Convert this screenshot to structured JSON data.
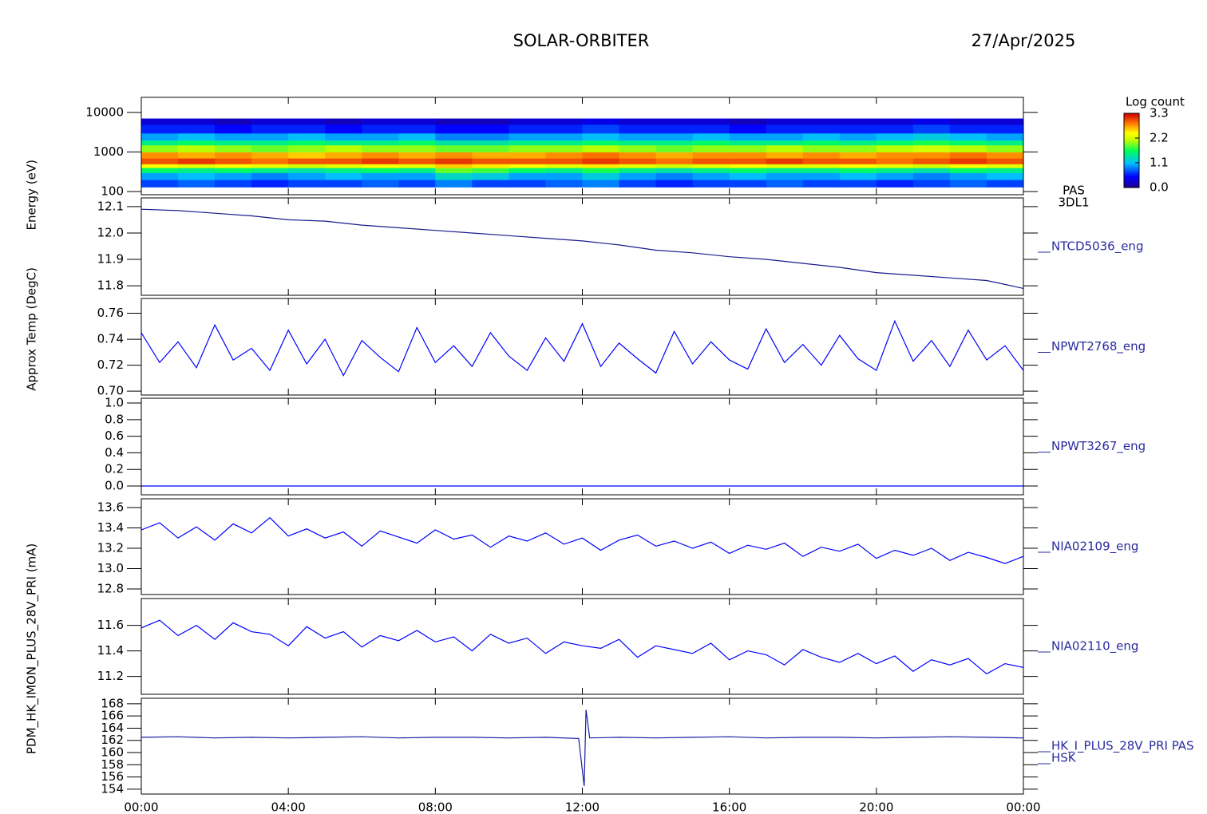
{
  "title": "SOLAR-ORBITER",
  "date": "27/Apr/2025",
  "xlim": [
    0,
    24
  ],
  "xticks": [
    {
      "value": 0,
      "label": "00:00"
    },
    {
      "value": 4,
      "label": "04:00"
    },
    {
      "value": 8,
      "label": "08:00"
    },
    {
      "value": 12,
      "label": "12:00"
    },
    {
      "value": 16,
      "label": "16:00"
    },
    {
      "value": 20,
      "label": "20:00"
    },
    {
      "value": 24,
      "label": "00:00"
    }
  ],
  "chart_data": [
    {
      "type": "heatmap",
      "ylabel": "Energy (eV)",
      "label": [
        "PAS",
        "3DL1"
      ],
      "log": true,
      "ylim": [
        83,
        24000
      ],
      "yticks": [
        100,
        1000,
        10000
      ],
      "colormap": "rainbow",
      "zlim": [
        0,
        3.3
      ],
      "colorbar": {
        "title": "Log count",
        "ticks": [
          {
            "value": 0,
            "label": "0.0"
          },
          1.1,
          2.2,
          3.3
        ]
      },
      "x_edges": [
        0,
        1,
        2,
        3,
        4,
        5,
        6,
        7,
        8,
        9,
        10,
        11,
        12,
        13,
        14,
        15,
        16,
        17,
        18,
        19,
        20,
        21,
        22,
        23,
        24
      ],
      "y_edges": [
        130,
        200,
        300,
        400,
        500,
        700,
        1000,
        1500,
        2000,
        3000,
        5000,
        7000
      ],
      "z": [
        [
          0.7,
          0.8,
          0.7,
          0.6,
          0.7,
          0.7,
          0.8,
          0.7,
          0.9,
          0.7,
          0.7,
          0.8,
          0.9,
          0.7,
          0.6,
          0.7,
          0.7,
          0.8,
          0.7,
          0.7,
          0.6,
          0.7,
          0.8,
          0.7
        ],
        [
          1.0,
          1.1,
          1.0,
          0.9,
          1.0,
          1.1,
          1.0,
          1.0,
          1.3,
          1.2,
          1.0,
          1.0,
          1.2,
          1.0,
          0.9,
          1.0,
          1.1,
          1.0,
          1.0,
          1.1,
          1.0,
          0.9,
          1.0,
          1.1
        ],
        [
          1.6,
          1.5,
          1.6,
          1.5,
          1.4,
          1.5,
          1.6,
          1.5,
          1.9,
          1.8,
          1.6,
          1.5,
          1.7,
          1.5,
          1.4,
          1.5,
          1.6,
          1.5,
          1.5,
          1.6,
          1.5,
          1.4,
          1.6,
          1.5
        ],
        [
          2.4,
          2.3,
          2.4,
          2.3,
          2.2,
          2.3,
          2.4,
          2.3,
          2.6,
          2.5,
          2.4,
          2.3,
          2.5,
          2.3,
          2.2,
          2.3,
          2.4,
          2.3,
          2.3,
          2.4,
          2.3,
          2.2,
          2.4,
          2.3
        ],
        [
          3.0,
          3.1,
          3.0,
          2.9,
          3.0,
          3.0,
          3.1,
          3.0,
          3.1,
          3.0,
          3.0,
          3.0,
          3.1,
          3.0,
          2.9,
          3.0,
          3.0,
          3.1,
          3.0,
          3.0,
          2.9,
          3.0,
          3.1,
          3.0
        ],
        [
          2.8,
          2.7,
          2.8,
          2.7,
          2.6,
          2.7,
          2.8,
          2.7,
          2.8,
          2.7,
          2.7,
          2.8,
          2.9,
          2.8,
          2.7,
          2.8,
          2.8,
          2.7,
          2.8,
          2.7,
          2.8,
          2.8,
          2.9,
          2.8
        ],
        [
          2.0,
          2.1,
          2.0,
          1.9,
          2.0,
          2.1,
          2.0,
          2.0,
          1.9,
          1.9,
          2.0,
          2.0,
          2.1,
          2.0,
          1.9,
          2.0,
          2.0,
          2.1,
          2.0,
          2.0,
          2.1,
          2.2,
          2.1,
          2.0
        ],
        [
          1.5,
          1.6,
          1.5,
          1.5,
          1.6,
          1.5,
          1.5,
          1.6,
          1.4,
          1.4,
          1.5,
          1.5,
          1.6,
          1.5,
          1.5,
          1.6,
          1.5,
          1.5,
          1.6,
          1.5,
          1.6,
          1.7,
          1.6,
          1.5
        ],
        [
          1.0,
          1.1,
          1.0,
          1.0,
          1.1,
          1.0,
          1.0,
          1.1,
          0.9,
          0.9,
          1.0,
          1.0,
          1.1,
          1.0,
          1.0,
          1.1,
          1.0,
          1.0,
          1.1,
          1.0,
          1.1,
          1.2,
          1.1,
          1.0
        ],
        [
          0.6,
          0.6,
          0.5,
          0.6,
          0.6,
          0.5,
          0.6,
          0.6,
          0.5,
          0.5,
          0.6,
          0.6,
          0.7,
          0.6,
          0.6,
          0.6,
          0.5,
          0.6,
          0.6,
          0.6,
          0.6,
          0.7,
          0.6,
          0.6
        ],
        [
          0.3,
          0.3,
          0.2,
          0.3,
          0.3,
          0.2,
          0.3,
          0.3,
          0.2,
          0.2,
          0.3,
          0.3,
          0.4,
          0.3,
          0.3,
          0.3,
          0.2,
          0.3,
          0.3,
          0.3,
          0.3,
          0.4,
          0.3,
          0.3
        ]
      ]
    },
    {
      "type": "line",
      "ylabel": "Approx Temp (DegC)",
      "label": [
        "NTCD5036_eng"
      ],
      "color": "#1a1a8c",
      "ylim": [
        11.764,
        12.133
      ],
      "yticks": [
        11.8,
        11.9,
        {
          "value": 12,
          "label": "12.0"
        },
        12.1
      ],
      "x": [
        0,
        1,
        2,
        3,
        4,
        5,
        6,
        7,
        8,
        9,
        10,
        11,
        12,
        13,
        14,
        15,
        16,
        17,
        18,
        19,
        20,
        21,
        22,
        23,
        24
      ],
      "values": [
        12.09,
        12.085,
        12.075,
        12.065,
        12.05,
        12.045,
        12.03,
        12.02,
        12.01,
        12.0,
        11.99,
        11.98,
        11.97,
        11.955,
        11.935,
        11.925,
        11.91,
        11.9,
        11.885,
        11.87,
        11.85,
        11.84,
        11.83,
        11.82,
        11.79
      ]
    },
    {
      "type": "line",
      "label": [
        "NPWT2768_eng"
      ],
      "color": "#0000ff",
      "ylim": [
        0.697,
        0.7714
      ],
      "yticks": [
        {
          "value": 0.7,
          "label": "0.70"
        },
        0.72,
        0.74,
        0.76
      ],
      "x": [
        0,
        0.5,
        1,
        1.5,
        2,
        2.5,
        3,
        3.5,
        4,
        4.5,
        5,
        5.5,
        6,
        6.5,
        7,
        7.5,
        8,
        8.5,
        9,
        9.5,
        10,
        10.5,
        11,
        11.5,
        12,
        12.5,
        13,
        13.5,
        14,
        14.5,
        15,
        15.5,
        16,
        16.5,
        17,
        17.5,
        18,
        18.5,
        19,
        19.5,
        20,
        20.5,
        21,
        21.5,
        22,
        22.5,
        23,
        23.5,
        24
      ],
      "values": [
        0.745,
        0.722,
        0.738,
        0.718,
        0.751,
        0.724,
        0.733,
        0.716,
        0.747,
        0.721,
        0.74,
        0.712,
        0.739,
        0.726,
        0.715,
        0.749,
        0.722,
        0.735,
        0.719,
        0.745,
        0.727,
        0.716,
        0.741,
        0.723,
        0.752,
        0.719,
        0.737,
        0.725,
        0.714,
        0.746,
        0.721,
        0.738,
        0.724,
        0.717,
        0.748,
        0.722,
        0.736,
        0.72,
        0.743,
        0.725,
        0.716,
        0.754,
        0.723,
        0.739,
        0.719,
        0.747,
        0.724,
        0.735,
        0.716
      ]
    },
    {
      "type": "line",
      "label": [
        "NPWT3267_eng"
      ],
      "color": "#0000ff",
      "ylim": [
        -0.106,
        1.058
      ],
      "yticks": [
        {
          "value": 0,
          "label": "0.0"
        },
        0.2,
        0.4,
        0.6,
        0.8,
        {
          "value": 1,
          "label": "1.0"
        }
      ],
      "x": [
        0,
        24
      ],
      "values": [
        0,
        0
      ]
    },
    {
      "type": "line",
      "label": [
        "NIA02109_eng"
      ],
      "color": "#0000ff",
      "ylim": [
        12.745,
        13.686
      ],
      "yticks": [
        12.8,
        {
          "value": 13,
          "label": "13.0"
        },
        13.2,
        13.4,
        13.6
      ],
      "x": [
        0,
        0.5,
        1,
        1.5,
        2,
        2.5,
        3,
        3.5,
        4,
        4.5,
        5,
        5.5,
        6,
        6.5,
        7,
        7.5,
        8,
        8.5,
        9,
        9.5,
        10,
        10.5,
        11,
        11.5,
        12,
        12.5,
        13,
        13.5,
        14,
        14.5,
        15,
        15.5,
        16,
        16.5,
        17,
        17.5,
        18,
        18.5,
        19,
        19.5,
        20,
        20.5,
        21,
        21.5,
        22,
        22.5,
        23,
        23.5,
        24
      ],
      "values": [
        13.38,
        13.45,
        13.3,
        13.41,
        13.28,
        13.44,
        13.35,
        13.5,
        13.32,
        13.39,
        13.3,
        13.36,
        13.22,
        13.37,
        13.31,
        13.25,
        13.38,
        13.29,
        13.33,
        13.21,
        13.32,
        13.27,
        13.35,
        13.24,
        13.3,
        13.18,
        13.28,
        13.33,
        13.22,
        13.27,
        13.2,
        13.26,
        13.15,
        13.23,
        13.19,
        13.25,
        13.12,
        13.21,
        13.17,
        13.24,
        13.1,
        13.18,
        13.13,
        13.2,
        13.08,
        13.16,
        13.11,
        13.05,
        13.12
      ]
    },
    {
      "type": "line",
      "label": [
        "NIA02110_eng"
      ],
      "color": "#0000ff",
      "ylim": [
        11.06,
        11.81
      ],
      "yticks": [
        11.2,
        11.4,
        11.6
      ],
      "x": [
        0,
        0.5,
        1,
        1.5,
        2,
        2.5,
        3,
        3.5,
        4,
        4.5,
        5,
        5.5,
        6,
        6.5,
        7,
        7.5,
        8,
        8.5,
        9,
        9.5,
        10,
        10.5,
        11,
        11.5,
        12,
        12.5,
        13,
        13.5,
        14,
        14.5,
        15,
        15.5,
        16,
        16.5,
        17,
        17.5,
        18,
        18.5,
        19,
        19.5,
        20,
        20.5,
        21,
        21.5,
        22,
        22.5,
        23,
        23.5,
        24
      ],
      "values": [
        11.58,
        11.64,
        11.52,
        11.6,
        11.49,
        11.62,
        11.55,
        11.53,
        11.44,
        11.59,
        11.5,
        11.55,
        11.43,
        11.52,
        11.48,
        11.56,
        11.47,
        11.51,
        11.4,
        11.53,
        11.46,
        11.5,
        11.38,
        11.47,
        11.44,
        11.42,
        11.49,
        11.35,
        11.44,
        11.41,
        11.38,
        11.46,
        11.33,
        11.4,
        11.37,
        11.29,
        11.41,
        11.35,
        11.31,
        11.38,
        11.3,
        11.36,
        11.24,
        11.33,
        11.29,
        11.34,
        11.22,
        11.3,
        11.27
      ]
    },
    {
      "type": "line",
      "ylabel": "PDM_HK_IMON_PLUS_28V_PRI (mA)",
      "label": [
        "HK_I_PLUS_28V_PRI PAS",
        "HSK"
      ],
      "color": "#1a1aa0",
      "ylim": [
        153.2,
        168.9
      ],
      "yticks": [
        154,
        156,
        158,
        160,
        162,
        164,
        166,
        168
      ],
      "x": [
        0,
        1,
        2,
        3,
        4,
        5,
        6,
        7,
        8,
        9,
        10,
        11,
        11.9,
        12.05,
        12.1,
        12.2,
        13,
        14,
        15,
        16,
        17,
        18,
        19,
        20,
        21,
        22,
        23,
        24
      ],
      "values": [
        162.5,
        162.6,
        162.4,
        162.5,
        162.4,
        162.5,
        162.6,
        162.4,
        162.5,
        162.5,
        162.4,
        162.5,
        162.3,
        154.5,
        167.0,
        162.4,
        162.5,
        162.4,
        162.5,
        162.6,
        162.4,
        162.5,
        162.5,
        162.4,
        162.5,
        162.6,
        162.5,
        162.4
      ]
    }
  ]
}
